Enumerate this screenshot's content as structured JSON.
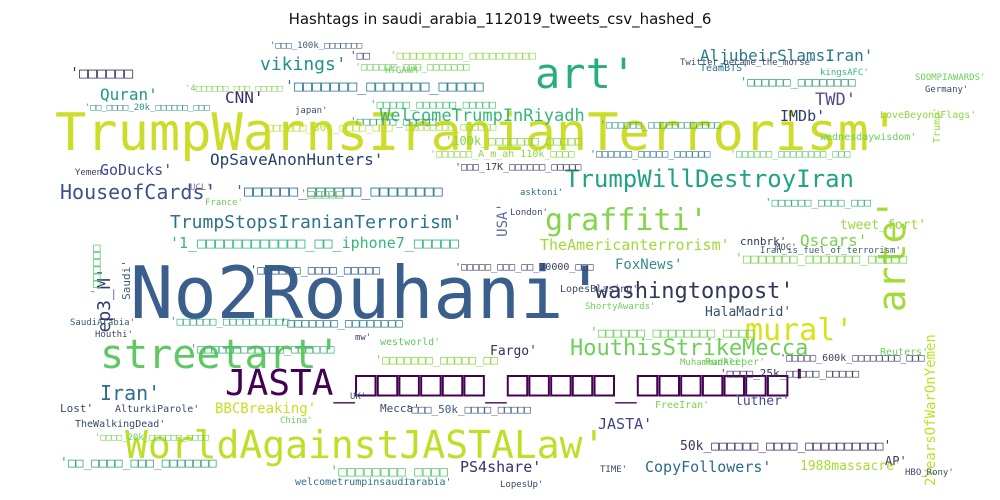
{
  "title": "Hashtags in saudi_arabia_112019_tweets_csv_hashed_6",
  "words": [
    {
      "text": "TrumpWarnsIranianTerrorism'",
      "color": "#cddc28"
    },
    {
      "text": "No2Rouhani'",
      "color": "#3a5f8c"
    },
    {
      "text": "JASTA_□□□□□□_□□□□□_□□□□□□□'",
      "color": "#440154"
    },
    {
      "text": "WorldAgainstJASTALaw'",
      "color": "#bddf26"
    },
    {
      "text": "streetart'",
      "color": "#5ec962"
    },
    {
      "text": "art'",
      "color": "#27ad81"
    },
    {
      "text": "arte'",
      "color": "#a5db36"
    },
    {
      "text": "graffiti'",
      "color": "#84d44b"
    },
    {
      "text": "mural'",
      "color": "#d8e219"
    },
    {
      "text": "TrumpWillDestroyIran",
      "color": "#20a386"
    },
    {
      "text": "HouthisStrikeMecca",
      "color": "#6ece58"
    },
    {
      "text": "washingtonpost'",
      "color": "#31375a"
    },
    {
      "text": "HouseofCards'",
      "color": "#3b528b"
    },
    {
      "text": "TrumpStopsIranianTerrorism'",
      "color": "#2c728e"
    },
    {
      "text": "OpSaveAnonHunters'",
      "color": "#24426e"
    },
    {
      "text": "WelcomeTrumpInRiyadh",
      "color": "#35b779"
    },
    {
      "text": "vikings'",
      "color": "#21918c"
    },
    {
      "text": "AljubeirSlamsIran'",
      "color": "#2a788e"
    },
    {
      "text": "Quran'",
      "color": "#1f9a8a"
    },
    {
      "text": "CNN'",
      "color": "#3b2a6b"
    },
    {
      "text": "IMDb'",
      "color": "#2d3f70"
    },
    {
      "text": "TWD'",
      "color": "#5a4a8a"
    },
    {
      "text": "GoDucks'",
      "color": "#3e4a89"
    },
    {
      "text": "Oscars'",
      "color": "#7ad151"
    },
    {
      "text": "TheAmericanterrorism'",
      "color": "#a0da39"
    },
    {
      "text": "FoxNews'",
      "color": "#3c8c8a"
    },
    {
      "text": "ep3_M'",
      "color": "#2f3c6e"
    },
    {
      "text": "Iran'",
      "color": "#2e6e8e"
    },
    {
      "text": "HalaMadrid'",
      "color": "#33506a"
    },
    {
      "text": "Fargo'",
      "color": "#39305a"
    },
    {
      "text": "BBCBreaking'",
      "color": "#c6e021"
    },
    {
      "text": "JASTA'",
      "color": "#414487"
    },
    {
      "text": "PS4share'",
      "color": "#3b2e6a"
    },
    {
      "text": "CopyFollowers'",
      "color": "#2c6b8e"
    },
    {
      "text": "2YearsOfWarOnYemen",
      "color": "#bde123"
    },
    {
      "text": "luther'",
      "color": "#3d4d87"
    },
    {
      "text": "1988massacre'",
      "color": "#a8db34"
    },
    {
      "text": "AP'",
      "color": "#3a3a5a"
    },
    {
      "text": "tweet_fort'",
      "color": "#95d840"
    },
    {
      "text": "USA'",
      "color": "#5b6b9a"
    },
    {
      "text": "50k_□□□□□□_□□□□_□□□□□□□□□□'",
      "color": "#3b3060"
    },
    {
      "text": "'1_□□□□□□□□□□□□_□□_iphone7_□□□□□",
      "color": "#35b779"
    },
    {
      "text": "'□□□□□□□_□□□□□□□_□□□□□",
      "color": "#2a7c8e"
    },
    {
      "text": "'□□□□□□_□□□□□□_□□□□□□□□",
      "color": "#2c728e"
    },
    {
      "text": "'□□□□□□",
      "color": "#3b3a6a"
    },
    {
      "text": "'□□□□□□_□□□□_□□□□□",
      "color": "#2e5e8e"
    },
    {
      "text": "'□□_□□□□_□□□_□□□□□□□",
      "color": "#35a070"
    },
    {
      "text": "'□□□□□□□_□□□□□□□_□□□□□",
      "color": "#7ad151"
    },
    {
      "text": "'□□□□□□_□□□□□□□□_□□□□",
      "color": "#6ece58"
    },
    {
      "text": "'□□□□□_□□□□□□_□□□□□",
      "color": "#40bd72"
    },
    {
      "text": "'□□□□□□□□□□_□□□□□□□□□□",
      "color": "#8fd744"
    },
    {
      "text": "'□□□□□□_□□□□□□□□□□□□",
      "color": "#3a9e88"
    },
    {
      "text": "'□□□□□□_□□□□□□□□",
      "color": "#3aa07e"
    },
    {
      "text": "'□□□□□□",
      "color": "#4ac16d"
    },
    {
      "text": "'□□□□□□□□_□□□□",
      "color": "#5ac864"
    },
    {
      "text": "'□□□□□□□□□□□□_□□□□□□",
      "color": "#48b27a"
    },
    {
      "text": "'□□",
      "color": "#46337e"
    },
    {
      "text": "'□□□□□",
      "color": "#6bcb5c"
    },
    {
      "text": "'□□□□□□_□□□□_□□□",
      "color": "#38aa80"
    },
    {
      "text": "'□□□□□□□_□□□□□_□□",
      "color": "#8bd646"
    },
    {
      "text": "'□□□□□□□_□□□□□□□□",
      "color": "#2f7e8e"
    },
    {
      "text": "'□□□□□□_□□□□□□□□□□",
      "color": "#38aa80"
    },
    {
      "text": "'□□□□□□_□□□□□",
      "color": "#3b9e86"
    },
    {
      "text": "'□□□□□□□□_□□□□□□",
      "color": "#9ad83e"
    },
    {
      "text": "'□□□_50k_□□□□_□□□□□",
      "color": "#3a5a7a"
    },
    {
      "text": "'□□□□□□_A_m_ah 110k_□□□□",
      "color": "#8bd646"
    },
    {
      "text": "'□□□□□□_□□□□□_□□□□□□",
      "color": "#2c728e"
    },
    {
      "text": "'□□□□□□_□□□□□□□□_□□□",
      "color": "#5ac864"
    },
    {
      "text": "'□□□□□□_□□□_□□□□□□□",
      "color": "#6ece58"
    },
    {
      "text": "'□□□□□_□□□_□□_30000_□□□",
      "color": "#3a4060"
    },
    {
      "text": "'□□□□□_600k_□□□□□□□□_□□□",
      "color": "#3a4060"
    },
    {
      "text": "'□□□_17K_□□□□□□_□□□□□",
      "color": "#3a4060"
    },
    {
      "text": "'□□_□□□□_20k_□□□□□□_□□□",
      "color": "#2e8e80"
    },
    {
      "text": "'□□□□_25k_□□□□□_□□□□□",
      "color": "#3a3a5a"
    },
    {
      "text": "'□□□□_20k_□□□□□□_□□□□",
      "color": "#6ece58"
    },
    {
      "text": "'□□□□□□_30k_□□□□_□□□",
      "color": "#b5de2b"
    },
    {
      "text": "'100k_□□□□□□□_□□□□□",
      "color": "#8bd646"
    },
    {
      "text": "'4□□□□□□_□□□_□□□□□",
      "color": "#7ad151"
    },
    {
      "text": "'□□□_100k_□□□□□□□",
      "color": "#3a5a7a"
    },
    {
      "text": "HTGAWM'",
      "color": "#6ece58"
    },
    {
      "text": "TeamBTS'",
      "color": "#2c728e"
    },
    {
      "text": "kingsAFC'",
      "color": "#35b779"
    },
    {
      "text": "wednesdaywisdom'",
      "color": "#6ece58"
    },
    {
      "text": "LoveBeyondFlags'",
      "color": "#8bd646"
    },
    {
      "text": "Trump'",
      "color": "#9ad83e"
    },
    {
      "text": "japan'",
      "color": "#3b4a6a"
    },
    {
      "text": "asktoni'",
      "color": "#2e6e8e"
    },
    {
      "text": "London'",
      "color": "#3a4a6a"
    },
    {
      "text": "cnnbrk'",
      "color": "#2c3a60"
    },
    {
      "text": "Iran_is_fuel_of_terrorism'",
      "color": "#35606a"
    },
    {
      "text": "Saudi'",
      "color": "#3a5a7a"
    },
    {
      "text": "SaudiArabia'",
      "color": "#3a5a7a"
    },
    {
      "text": "France'",
      "color": "#6ece58"
    },
    {
      "text": "UCL'",
      "color": "#7a7a9a"
    },
    {
      "text": "Yemen'",
      "color": "#3b3a6a"
    },
    {
      "text": "westworld'",
      "color": "#5ac864"
    },
    {
      "text": "MuhammadAli'",
      "color": "#6ece58"
    },
    {
      "text": "Runkeeper'",
      "color": "#6ece58"
    },
    {
      "text": "Reuters'",
      "color": "#6ece58"
    },
    {
      "text": "Lost'",
      "color": "#3a4a6a"
    },
    {
      "text": "AlturkiParole'",
      "color": "#3a4a6a"
    },
    {
      "text": "TheWalkingDead'",
      "color": "#3a4a6a"
    },
    {
      "text": "Mecca'",
      "color": "#3a4a6a"
    },
    {
      "text": "UK'",
      "color": "#3a5a7a"
    },
    {
      "text": "China'",
      "color": "#6ece58"
    },
    {
      "text": "FreeIran'",
      "color": "#7ad151"
    },
    {
      "text": "Houthi'",
      "color": "#3a4a6a"
    },
    {
      "text": "welcometrumpinsaudiarabia'",
      "color": "#2c728e"
    },
    {
      "text": "LopesBlasing'",
      "color": "#3a4a6a"
    },
    {
      "text": "ShortyAwards'",
      "color": "#6ece58"
    },
    {
      "text": "mw'",
      "color": "#3a4a6a"
    },
    {
      "text": "HBO_Rony'",
      "color": "#3a4a6a"
    },
    {
      "text": "Germany'",
      "color": "#3a4a6a"
    },
    {
      "text": "SOOMPIAWARDS'",
      "color": "#6ece58"
    },
    {
      "text": "Twitter_became_the_morse'",
      "color": "#3a4a6a"
    },
    {
      "text": "MOC'",
      "color": "#3a4a6a"
    },
    {
      "text": "TIME'",
      "color": "#3a4a6a"
    },
    {
      "text": "LopesUp'",
      "color": "#3a4a6a"
    },
    {
      "text": "LaLaLand'",
      "color": "#6ece58"
    },
    {
      "text": "NewProfilePic'",
      "color": "#3a4a6a"
    },
    {
      "text": "Transactions'",
      "color": "#3a4a6a"
    },
    {
      "text": "at'",
      "color": "#3a4a6a"
    },
    {
      "text": "Teibbon'",
      "color": "#3a4a6a"
    }
  ]
}
